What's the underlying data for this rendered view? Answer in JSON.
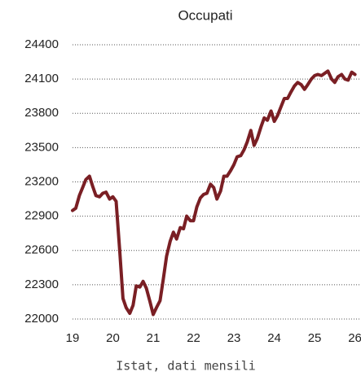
{
  "chart_data": {
    "type": "line",
    "title": "Occupati",
    "subtitle": "Istat, dati mensili",
    "x": [
      19.0,
      19.08,
      19.17,
      19.25,
      19.33,
      19.42,
      19.5,
      19.58,
      19.67,
      19.75,
      19.83,
      19.92,
      20.0,
      20.08,
      20.17,
      20.25,
      20.33,
      20.42,
      20.5,
      20.58,
      20.67,
      20.75,
      20.83,
      20.92,
      21.0,
      21.08,
      21.17,
      21.25,
      21.33,
      21.42,
      21.5,
      21.58,
      21.67,
      21.75,
      21.83,
      21.92,
      22.0,
      22.08,
      22.17,
      22.25,
      22.33,
      22.42,
      22.5,
      22.58,
      22.67,
      22.75,
      22.83,
      22.92,
      23.0,
      23.08,
      23.17,
      23.25,
      23.33,
      23.42,
      23.5,
      23.58,
      23.67,
      23.75,
      23.83,
      23.92,
      24.0,
      24.08,
      24.17,
      24.25,
      24.33,
      24.42,
      24.5,
      24.58,
      24.67,
      24.75,
      24.83,
      24.92,
      25.0,
      25.08,
      25.17,
      25.25,
      25.33,
      25.42,
      25.5,
      25.58,
      25.67,
      25.75,
      25.83,
      25.92,
      26.0
    ],
    "values": [
      22950,
      22970,
      23080,
      23150,
      23220,
      23250,
      23160,
      23080,
      23070,
      23100,
      23110,
      23050,
      23070,
      23030,
      22600,
      22180,
      22100,
      22050,
      22120,
      22290,
      22280,
      22330,
      22270,
      22150,
      22040,
      22100,
      22160,
      22350,
      22550,
      22680,
      22760,
      22700,
      22800,
      22790,
      22900,
      22860,
      22860,
      22980,
      23060,
      23090,
      23100,
      23180,
      23150,
      23050,
      23120,
      23250,
      23250,
      23300,
      23350,
      23420,
      23430,
      23480,
      23550,
      23650,
      23520,
      23580,
      23680,
      23760,
      23740,
      23820,
      23730,
      23780,
      23860,
      23930,
      23930,
      23990,
      24040,
      24070,
      24050,
      24010,
      24050,
      24100,
      24130,
      24140,
      24130,
      24150,
      24170,
      24100,
      24070,
      24120,
      24140,
      24100,
      24090,
      24160,
      24140
    ],
    "color": "#7a1f24",
    "xlim": [
      19,
      26.15
    ],
    "xticks": [
      19,
      20,
      21,
      22,
      23,
      24,
      25,
      26
    ],
    "ylim": [
      22000,
      24400
    ],
    "yticks": [
      22000,
      22300,
      22600,
      22900,
      23200,
      23500,
      23800,
      24100,
      24400
    ],
    "grid": true
  }
}
